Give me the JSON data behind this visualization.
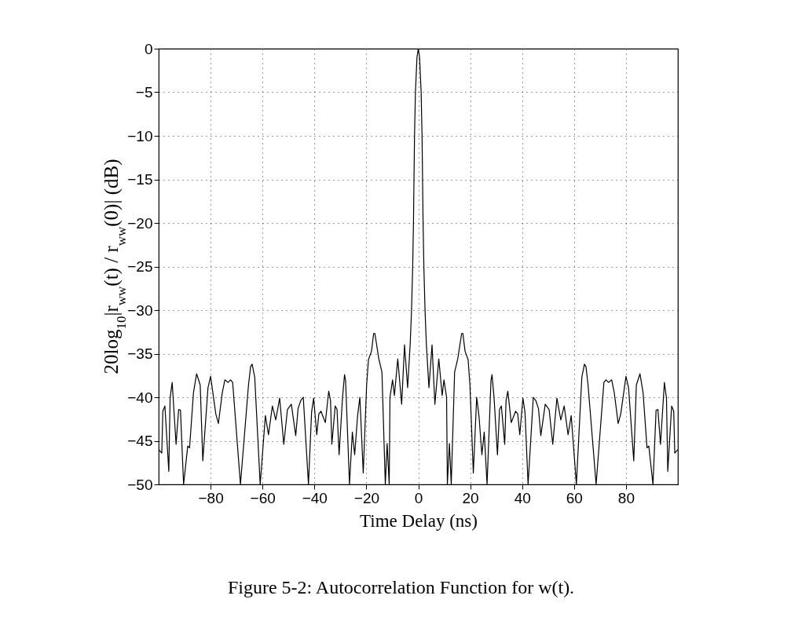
{
  "chart_data": {
    "type": "line",
    "xlabel": "Time Delay (ns)",
    "ylabel": "20log$_{10}$|r$_{ww}$(t) / r$_{ww}$(0)| (dB)",
    "annotations": [
      "Figure 5-2: Autocorrelation Function for w(t)."
    ],
    "xlim": [
      -100,
      100
    ],
    "xticks": [
      -80,
      -60,
      -40,
      -20,
      0,
      20,
      40,
      60,
      80
    ],
    "ylim": [
      -50,
      0
    ],
    "yticks": [
      -50,
      -45,
      -40,
      -35,
      -30,
      -25,
      -20,
      -15,
      -10,
      -5,
      0
    ],
    "grid": true,
    "marker": "none",
    "line_style": "solid",
    "x": [
      -100,
      -98.8,
      -98.4,
      -97.6,
      -96.1,
      -95.6,
      -94.8,
      -93.3,
      -92.3,
      -91.6,
      -90.4,
      -88.8,
      -88.1,
      -86.6,
      -85.4,
      -84,
      -83,
      -81,
      -80,
      -78,
      -77,
      -75.5,
      -74.5,
      -73.3,
      -72.3,
      -71.5,
      -68.5,
      -65.4,
      -64.6,
      -64,
      -63,
      -60.9,
      -58.9,
      -57.7,
      -56.2,
      -54.9,
      -53.4,
      -51.8,
      -50.4,
      -48.9,
      -47.2,
      -46.3,
      -45.3,
      -44.3,
      -42.3,
      -41.1,
      -40.3,
      -39.1,
      -38.3,
      -37.5,
      -35.8,
      -34.5,
      -33.8,
      -33.3,
      -32,
      -31.3,
      -30.5,
      -29.2,
      -28.4,
      -28,
      -26.5,
      -25.4,
      -24.5,
      -23.4,
      -22.5,
      -21.2,
      -19.9,
      -19.2,
      -18,
      -17.2,
      -16.7,
      -15.2,
      -14,
      -12.7,
      -12,
      -11.2,
      -10.9,
      -9.9,
      -9.2,
      -7.9,
      -6.4,
      -5.3,
      -4.1,
      -3.1,
      -2.6,
      -2.15,
      -1.85,
      -1.45,
      -1.1,
      -0.5,
      0,
      0.5,
      1.1,
      1.45,
      1.85,
      2.15,
      2.6,
      3.1,
      4.1,
      5.3,
      6.4,
      7.9,
      9.2,
      9.9,
      10.9,
      11.2,
      12,
      12.7,
      14,
      15.2,
      16.7,
      17.2,
      18,
      19.2,
      19.9,
      21.2,
      22.5,
      23.4,
      24.5,
      25.4,
      26.5,
      28,
      28.4,
      29.2,
      30.5,
      31.3,
      32,
      33.3,
      33.8,
      34.5,
      35.8,
      37.5,
      38.3,
      39.1,
      40.3,
      41.1,
      42.3,
      44.3,
      45.3,
      46.3,
      47.2,
      48.9,
      50.4,
      51.8,
      53.4,
      54.9,
      56.2,
      57.7,
      58.9,
      60.9,
      63,
      64,
      64.6,
      65.4,
      68.5,
      71.5,
      72.3,
      73.3,
      74.5,
      75.5,
      77,
      78,
      80,
      81,
      83,
      84,
      85.4,
      86.6,
      88.1,
      88.8,
      90.4,
      91.6,
      92.3,
      93.3,
      94.8,
      95.6,
      96.1,
      97.6,
      98.4,
      98.8,
      100
    ],
    "series": [
      {
        "color": "#000000",
        "values": [
          -46,
          -46.4,
          -41.6,
          -41,
          -48.5,
          -40.1,
          -38.3,
          -45.4,
          -41.4,
          -41.5,
          -50,
          -45.6,
          -45.8,
          -39.5,
          -37.3,
          -38.6,
          -47.3,
          -38.9,
          -37.6,
          -41.9,
          -43,
          -39.5,
          -38,
          -38.3,
          -38,
          -38.3,
          -50,
          -38.6,
          -36.5,
          -36.2,
          -37.7,
          -50,
          -42.1,
          -44.3,
          -41,
          -42.6,
          -40.1,
          -45.4,
          -41.4,
          -40.8,
          -44.4,
          -41.3,
          -40.4,
          -40,
          -50,
          -41.7,
          -40.1,
          -44.3,
          -41.9,
          -41.6,
          -42.9,
          -39.3,
          -40.4,
          -45.4,
          -41,
          -41.4,
          -46.6,
          -40.1,
          -37.4,
          -38.1,
          -50,
          -44,
          -46.6,
          -42.2,
          -40,
          -48.7,
          -38.6,
          -35.7,
          -34.7,
          -32.7,
          -32.7,
          -35.6,
          -37.1,
          -50,
          -45.3,
          -50,
          -40,
          -38,
          -39.8,
          -35.6,
          -40.8,
          -34,
          -38.9,
          -33.8,
          -30,
          -25,
          -20,
          -10,
          -5,
          -1,
          0,
          -1,
          -5,
          -10,
          -20,
          -25,
          -30,
          -33.8,
          -38.9,
          -34,
          -40.8,
          -35.6,
          -39.8,
          -38,
          -40,
          -50,
          -45.3,
          -50,
          -37.1,
          -35.6,
          -32.7,
          -32.7,
          -34.7,
          -35.7,
          -38.6,
          -48.7,
          -40,
          -42.2,
          -46.6,
          -44,
          -50,
          -38.1,
          -37.4,
          -40.1,
          -46.6,
          -41.4,
          -41,
          -45.4,
          -40.4,
          -39.3,
          -42.9,
          -41.6,
          -41.9,
          -44.3,
          -40.1,
          -41.7,
          -50,
          -40,
          -40.4,
          -41.3,
          -44.4,
          -40.8,
          -41.4,
          -45.4,
          -40.1,
          -42.6,
          -41,
          -44.3,
          -42.1,
          -50,
          -37.7,
          -36.2,
          -36.5,
          -38.6,
          -50,
          -38.3,
          -38,
          -38.3,
          -38,
          -39.5,
          -43,
          -41.9,
          -37.6,
          -38.9,
          -47.3,
          -38.6,
          -37.3,
          -39.5,
          -45.8,
          -45.6,
          -50,
          -41.5,
          -41.4,
          -45.4,
          -38.3,
          -40.1,
          -48.5,
          -41,
          -41.6,
          -46.4,
          -46
        ]
      }
    ]
  }
}
